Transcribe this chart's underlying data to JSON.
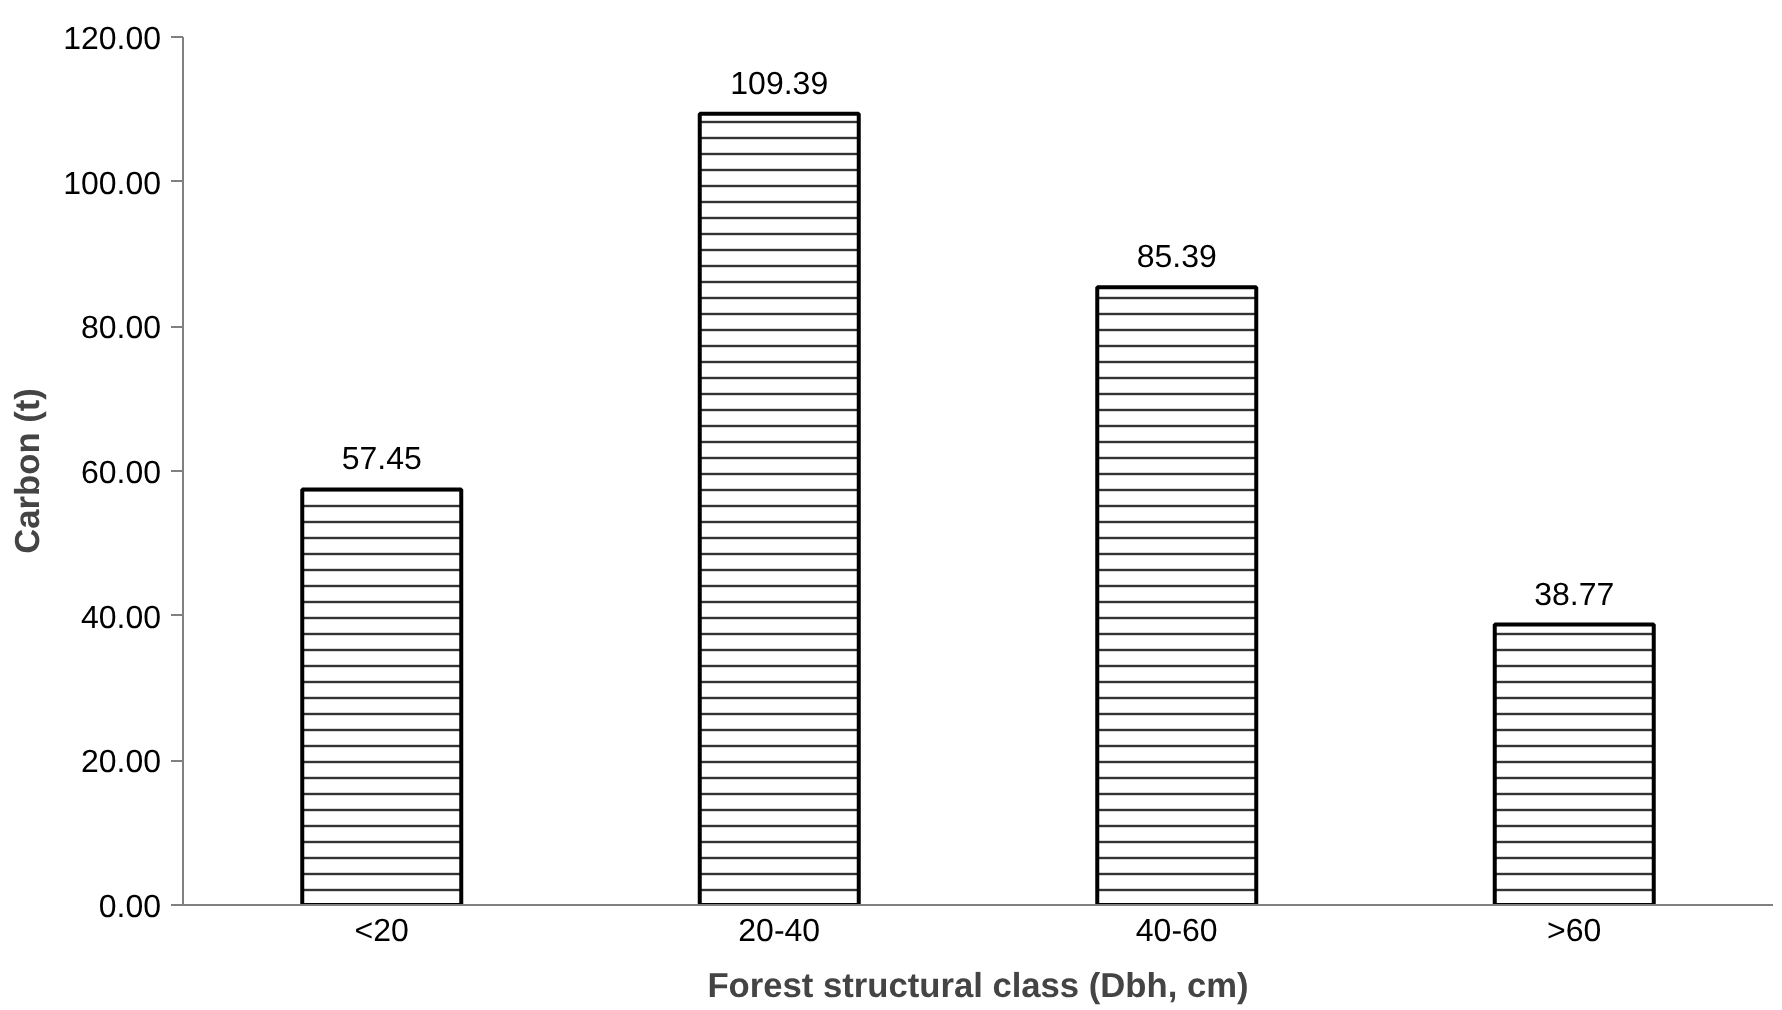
{
  "chart_data": {
    "type": "bar",
    "xlabel": "Forest structural class (Dbh, cm)",
    "ylabel": "Carbon (t)",
    "categories": [
      "<20",
      "20-40",
      "40-60",
      ">60"
    ],
    "values": [
      57.45,
      109.39,
      85.39,
      38.77
    ],
    "color": "#ffffff",
    "ylim": [
      0,
      120
    ],
    "yticks": [
      {
        "value": 0,
        "label": "0.00"
      },
      {
        "value": 20,
        "label": "20.00"
      },
      {
        "value": 40,
        "label": "40.00"
      },
      {
        "value": 60,
        "label": "60.00"
      },
      {
        "value": 80,
        "label": "80.00"
      },
      {
        "value": 100,
        "label": "100.00"
      },
      {
        "value": 120,
        "label": "120.00"
      }
    ],
    "data_labels": true
  }
}
